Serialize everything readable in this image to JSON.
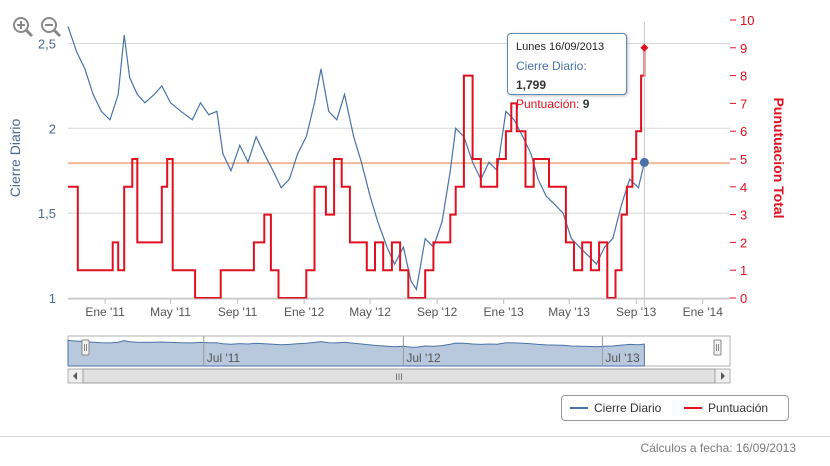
{
  "toolbar": {
    "zoom_in_icon": "zoom-in-icon",
    "zoom_out_icon": "zoom-out-icon"
  },
  "colors": {
    "close": "#4a72a8",
    "score": "#e01020",
    "refline": "#f0b896",
    "nav_fill": "#b9c9dd",
    "grid": "#d8d8d8"
  },
  "tooltip": {
    "title": "Lunes 16/09/2013",
    "close_label": "Cierre Diario",
    "close_value": "1,799",
    "score_label": "Puntuación",
    "score_value": "9"
  },
  "legend": {
    "close": "Cierre Diario",
    "score": "Puntuación"
  },
  "navigator": {
    "labels": [
      "Jul '11",
      "Jul '12",
      "Jul '13"
    ]
  },
  "scroll_handle": "III",
  "footer": {
    "calc_date": "Cálculos a fecha: 16/09/2013"
  },
  "chart_data": {
    "type": "line",
    "x_tick_labels": [
      "Ene '11",
      "May '11",
      "Sep '11",
      "Ene '12",
      "May '12",
      "Sep '12",
      "Ene '13",
      "May '13",
      "Sep '13",
      "Ene '14"
    ],
    "x_ticks": [
      "2011-01-01",
      "2011-05-01",
      "2011-09-01",
      "2012-01-01",
      "2012-05-01",
      "2012-09-01",
      "2013-01-01",
      "2013-05-01",
      "2013-09-01",
      "2014-01-01"
    ],
    "xlim": [
      "2010-10-25",
      "2014-02-20"
    ],
    "left_axis": {
      "label": "Cierre Diario",
      "ticks": [
        "1",
        "1,5",
        "2",
        "2,5"
      ],
      "tick_values": [
        1,
        1.5,
        2,
        2.5
      ],
      "ylim": [
        1,
        2.65
      ]
    },
    "right_axis": {
      "label": "Punutuacion Total",
      "ticks": [
        "0",
        "1",
        "2",
        "3",
        "4",
        "5",
        "6",
        "7",
        "8",
        "9",
        "10"
      ],
      "tick_values": [
        0,
        1,
        2,
        3,
        4,
        5,
        6,
        7,
        8,
        9,
        10
      ],
      "ylim": [
        0,
        10
      ]
    },
    "reference_line": {
      "axis": "right",
      "value": 4.85
    },
    "series": [
      {
        "name": "Cierre Diario",
        "axis": "left",
        "points": [
          [
            "2010-10-25",
            2.6
          ],
          [
            "2010-11-10",
            2.45
          ],
          [
            "2010-11-25",
            2.35
          ],
          [
            "2010-12-10",
            2.2
          ],
          [
            "2010-12-25",
            2.1
          ],
          [
            "2011-01-10",
            2.05
          ],
          [
            "2011-01-25",
            2.2
          ],
          [
            "2011-02-05",
            2.55
          ],
          [
            "2011-02-15",
            2.3
          ],
          [
            "2011-03-01",
            2.2
          ],
          [
            "2011-03-15",
            2.15
          ],
          [
            "2011-04-01",
            2.2
          ],
          [
            "2011-04-15",
            2.25
          ],
          [
            "2011-05-01",
            2.15
          ],
          [
            "2011-05-20",
            2.1
          ],
          [
            "2011-06-10",
            2.05
          ],
          [
            "2011-06-25",
            2.15
          ],
          [
            "2011-07-10",
            2.08
          ],
          [
            "2011-07-25",
            2.1
          ],
          [
            "2011-08-05",
            1.85
          ],
          [
            "2011-08-20",
            1.75
          ],
          [
            "2011-09-05",
            1.9
          ],
          [
            "2011-09-20",
            1.8
          ],
          [
            "2011-10-05",
            1.95
          ],
          [
            "2011-10-20",
            1.85
          ],
          [
            "2011-11-05",
            1.75
          ],
          [
            "2011-11-20",
            1.65
          ],
          [
            "2011-12-05",
            1.7
          ],
          [
            "2011-12-20",
            1.85
          ],
          [
            "2012-01-05",
            1.95
          ],
          [
            "2012-01-20",
            2.15
          ],
          [
            "2012-02-01",
            2.35
          ],
          [
            "2012-02-15",
            2.1
          ],
          [
            "2012-03-01",
            2.05
          ],
          [
            "2012-03-15",
            2.2
          ],
          [
            "2012-04-01",
            1.95
          ],
          [
            "2012-04-15",
            1.8
          ],
          [
            "2012-05-01",
            1.6
          ],
          [
            "2012-05-15",
            1.45
          ],
          [
            "2012-06-01",
            1.3
          ],
          [
            "2012-06-15",
            1.2
          ],
          [
            "2012-07-01",
            1.3
          ],
          [
            "2012-07-15",
            1.1
          ],
          [
            "2012-07-25",
            1.05
          ],
          [
            "2012-08-10",
            1.35
          ],
          [
            "2012-08-25",
            1.3
          ],
          [
            "2012-09-10",
            1.45
          ],
          [
            "2012-09-25",
            1.75
          ],
          [
            "2012-10-05",
            2.0
          ],
          [
            "2012-10-20",
            1.95
          ],
          [
            "2012-11-05",
            1.8
          ],
          [
            "2012-11-20",
            1.7
          ],
          [
            "2012-12-05",
            1.8
          ],
          [
            "2012-12-20",
            1.75
          ],
          [
            "2013-01-05",
            2.1
          ],
          [
            "2013-01-20",
            2.05
          ],
          [
            "2013-02-05",
            1.95
          ],
          [
            "2013-02-20",
            1.85
          ],
          [
            "2013-03-05",
            1.7
          ],
          [
            "2013-03-20",
            1.6
          ],
          [
            "2013-04-05",
            1.55
          ],
          [
            "2013-04-20",
            1.5
          ],
          [
            "2013-05-05",
            1.35
          ],
          [
            "2013-05-20",
            1.3
          ],
          [
            "2013-06-05",
            1.25
          ],
          [
            "2013-06-20",
            1.2
          ],
          [
            "2013-07-05",
            1.3
          ],
          [
            "2013-07-20",
            1.35
          ],
          [
            "2013-08-05",
            1.55
          ],
          [
            "2013-08-20",
            1.7
          ],
          [
            "2013-09-05",
            1.65
          ],
          [
            "2013-09-16",
            1.799
          ]
        ]
      },
      {
        "name": "Puntuación",
        "axis": "right",
        "step": true,
        "points": [
          [
            "2010-10-25",
            4
          ],
          [
            "2010-11-05",
            4
          ],
          [
            "2010-11-12",
            1
          ],
          [
            "2010-12-20",
            1
          ],
          [
            "2011-01-05",
            1
          ],
          [
            "2011-01-15",
            2
          ],
          [
            "2011-01-25",
            1
          ],
          [
            "2011-02-05",
            4
          ],
          [
            "2011-02-20",
            5
          ],
          [
            "2011-03-01",
            2
          ],
          [
            "2011-04-01",
            2
          ],
          [
            "2011-04-15",
            4
          ],
          [
            "2011-04-25",
            5
          ],
          [
            "2011-05-05",
            1
          ],
          [
            "2011-06-01",
            1
          ],
          [
            "2011-06-15",
            0
          ],
          [
            "2011-07-10",
            0
          ],
          [
            "2011-08-01",
            1
          ],
          [
            "2011-09-15",
            1
          ],
          [
            "2011-10-01",
            2
          ],
          [
            "2011-10-20",
            3
          ],
          [
            "2011-11-01",
            1
          ],
          [
            "2011-11-15",
            0
          ],
          [
            "2011-12-10",
            0
          ],
          [
            "2012-01-05",
            1
          ],
          [
            "2012-01-20",
            4
          ],
          [
            "2012-02-10",
            3
          ],
          [
            "2012-02-25",
            5
          ],
          [
            "2012-03-10",
            4
          ],
          [
            "2012-03-25",
            2
          ],
          [
            "2012-04-10",
            2
          ],
          [
            "2012-04-25",
            1
          ],
          [
            "2012-05-10",
            2
          ],
          [
            "2012-05-25",
            1
          ],
          [
            "2012-06-10",
            2
          ],
          [
            "2012-06-25",
            1
          ],
          [
            "2012-07-10",
            0
          ],
          [
            "2012-07-25",
            0
          ],
          [
            "2012-08-10",
            1
          ],
          [
            "2012-08-25",
            2
          ],
          [
            "2012-09-10",
            2
          ],
          [
            "2012-09-25",
            3
          ],
          [
            "2012-10-05",
            4
          ],
          [
            "2012-10-20",
            8
          ],
          [
            "2012-11-05",
            5
          ],
          [
            "2012-11-20",
            4
          ],
          [
            "2012-12-05",
            4
          ],
          [
            "2012-12-20",
            5
          ],
          [
            "2013-01-05",
            6
          ],
          [
            "2013-01-15",
            7
          ],
          [
            "2013-01-25",
            6
          ],
          [
            "2013-02-10",
            4
          ],
          [
            "2013-02-25",
            5
          ],
          [
            "2013-03-10",
            5
          ],
          [
            "2013-03-25",
            4
          ],
          [
            "2013-04-10",
            4
          ],
          [
            "2013-04-25",
            2
          ],
          [
            "2013-05-10",
            1
          ],
          [
            "2013-05-25",
            2
          ],
          [
            "2013-06-10",
            1
          ],
          [
            "2013-06-25",
            2
          ],
          [
            "2013-07-10",
            0
          ],
          [
            "2013-07-25",
            1
          ],
          [
            "2013-08-05",
            3
          ],
          [
            "2013-08-15",
            4
          ],
          [
            "2013-08-25",
            5
          ],
          [
            "2013-09-01",
            6
          ],
          [
            "2013-09-10",
            8
          ],
          [
            "2013-09-16",
            9
          ]
        ]
      }
    ],
    "marker": {
      "date": "2013-09-16",
      "close": 1.799,
      "score": 9
    }
  }
}
